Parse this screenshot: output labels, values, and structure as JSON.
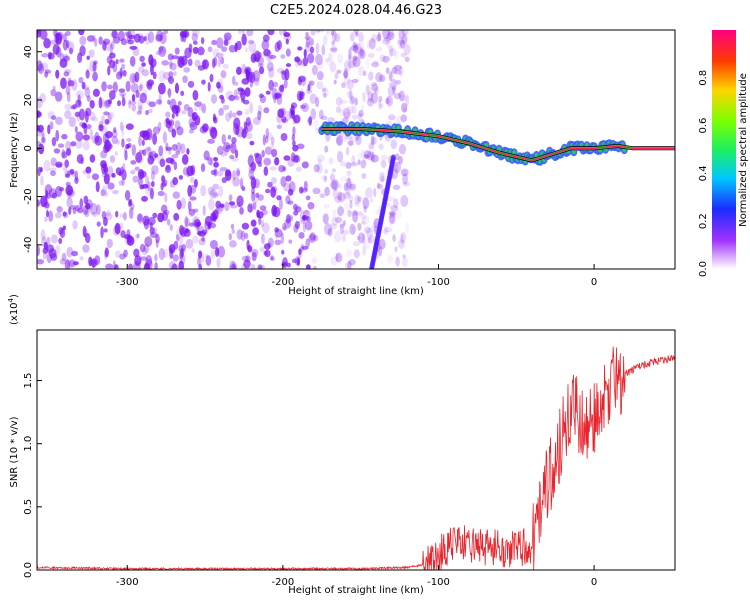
{
  "title": "C2E5.2024.028.04.46.G23",
  "chart_data": [
    {
      "type": "heatmap",
      "xlabel": "Height of straight line (km)",
      "ylabel": "Frequency (Hz)",
      "xlim": [
        -358,
        52
      ],
      "ylim": [
        -50,
        49
      ],
      "x_ticks": [
        -300,
        -200,
        -100,
        0
      ],
      "y_ticks": [
        -40,
        -20,
        0,
        20,
        40
      ],
      "colorbar": {
        "label": "Normalized spectral amplitude",
        "range": [
          0,
          1
        ],
        "ticks": [
          0.0,
          0.2,
          0.4,
          0.6,
          0.8
        ]
      },
      "trend_line": {
        "x": [
          -175,
          -150,
          -125,
          -100,
          -80,
          -60,
          -40,
          -25,
          -15,
          0,
          15,
          25,
          52
        ],
        "y": [
          8,
          8,
          7,
          5,
          2,
          -2,
          -5,
          -2,
          0,
          0,
          1,
          0,
          0
        ]
      },
      "colors": {
        "high": "#ff1f4b",
        "mid": "#22d24f",
        "low": "#3b5bff",
        "noise": "#7a12f2"
      }
    },
    {
      "type": "line",
      "xlabel": "Height of straight line (km)",
      "ylabel": "SNR (10 * v/v)",
      "y_multiplier": "(x10",
      "y_multiplier_exp": "4",
      "y_multiplier_close": ")",
      "xlim": [
        -358,
        52
      ],
      "ylim": [
        0,
        1.9
      ],
      "x_ticks": [
        -300,
        -200,
        -100,
        0
      ],
      "y_ticks": [
        0.0,
        0.5,
        1.0,
        1.5
      ],
      "color": "#e8232b",
      "series": [
        {
          "x": [
            -358,
            -300,
            -200,
            -150,
            -120,
            -105,
            -100,
            -90,
            -80,
            -70,
            -60,
            -50,
            -45,
            -40,
            -35,
            -30,
            -25,
            -20,
            -15,
            -12,
            -10,
            -5,
            0,
            5,
            10,
            20,
            30,
            40,
            52
          ],
          "y": [
            0.02,
            0.01,
            0.01,
            0.01,
            0.02,
            0.05,
            0.12,
            0.22,
            0.2,
            0.18,
            0.17,
            0.16,
            0.18,
            0.2,
            0.45,
            0.7,
            0.85,
            1.1,
            1.25,
            1.35,
            1.2,
            1.1,
            1.2,
            1.3,
            1.45,
            1.55,
            1.62,
            1.65,
            1.68
          ]
        }
      ]
    }
  ]
}
